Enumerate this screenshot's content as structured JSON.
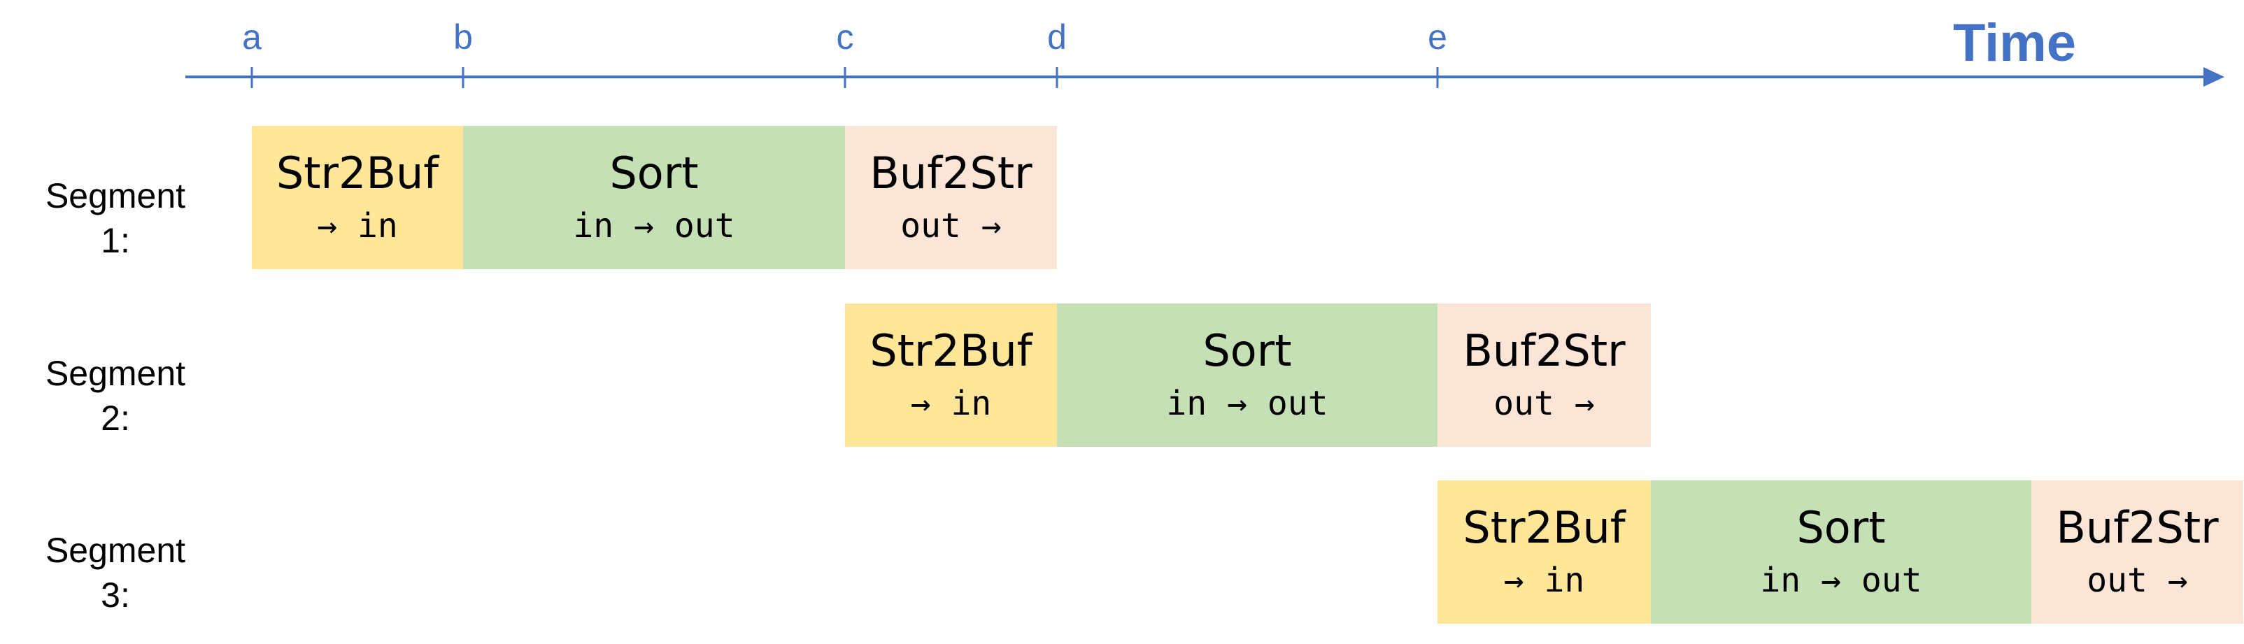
{
  "axis": {
    "title": "Time",
    "ticks": [
      "a",
      "b",
      "c",
      "d",
      "e"
    ],
    "color": "#4472C4"
  },
  "segments": [
    {
      "label_line1": "Segment",
      "label_line2": "1:",
      "stages": [
        {
          "title": "Str2Buf",
          "sub": "→ in",
          "color": "#FFE699"
        },
        {
          "title": "Sort",
          "sub": "in → out",
          "color": "#C5E0B4"
        },
        {
          "title": "Buf2Str",
          "sub": "out →",
          "color": "#FBE5D6"
        }
      ]
    },
    {
      "label_line1": "Segment",
      "label_line2": "2:",
      "stages": [
        {
          "title": "Str2Buf",
          "sub": "→ in",
          "color": "#FFE699"
        },
        {
          "title": "Sort",
          "sub": "in → out",
          "color": "#C5E0B4"
        },
        {
          "title": "Buf2Str",
          "sub": "out →",
          "color": "#FBE5D6"
        }
      ]
    },
    {
      "label_line1": "Segment",
      "label_line2": "3:",
      "stages": [
        {
          "title": "Str2Buf",
          "sub": "→ in",
          "color": "#FFE699"
        },
        {
          "title": "Sort",
          "sub": "in → out",
          "color": "#C5E0B4"
        },
        {
          "title": "Buf2Str",
          "sub": "out →",
          "color": "#FBE5D6"
        }
      ]
    }
  ]
}
